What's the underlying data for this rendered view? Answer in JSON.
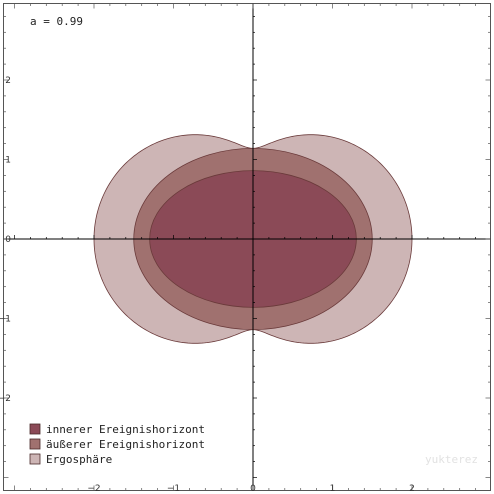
{
  "chart_data": {
    "type": "area",
    "parameter_label": "a = 0.99",
    "xlim": [
      -3,
      3
    ],
    "ylim": [
      -3,
      3
    ],
    "x_ticks": [
      -2,
      -1,
      0,
      1,
      2
    ],
    "y_ticks": [
      -2,
      -1,
      0,
      1,
      2
    ],
    "x_tick_labels": [
      "−2",
      "−1",
      "0",
      "1",
      "2"
    ],
    "y_tick_labels": [
      "−2",
      "−1",
      "0",
      "1",
      "2"
    ],
    "series": [
      {
        "name": "Ergosphäre",
        "color": "#cdb5b5",
        "r_equator": 2.2,
        "r_pole": 1.14
      },
      {
        "name": "äußerer Ereignishorizont",
        "color": "#a0716f",
        "r_equator": 1.5,
        "r_pole": 1.14
      },
      {
        "name": "innerer Ereignishorizont",
        "color": "#8b4a57",
        "r_equator": 1.3,
        "r_pole": 0.86
      }
    ],
    "legend": {
      "placement": "bottom-left",
      "items": [
        "innerer Ereignishorizont",
        "äußerer Ereignishorizont",
        "Ergosphäre"
      ],
      "colors": [
        "#8b4a57",
        "#a0716f",
        "#cdb5b5"
      ]
    },
    "watermark": "yukterez"
  }
}
